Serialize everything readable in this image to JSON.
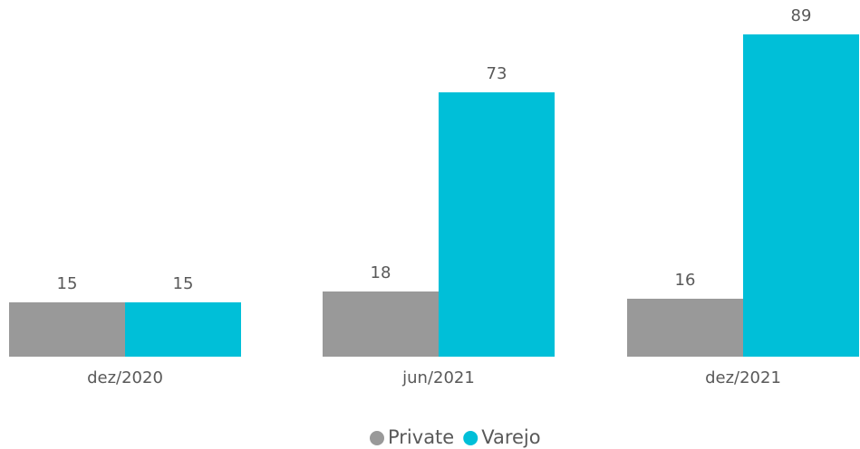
{
  "chart_data": {
    "type": "bar",
    "categories": [
      "dez/2020",
      "jun/2021",
      "dez/2021"
    ],
    "series": [
      {
        "name": "Private",
        "color": "#999999",
        "values": [
          15,
          18,
          16
        ]
      },
      {
        "name": "Varejo",
        "color": "#00bfd8",
        "values": [
          15,
          73,
          89
        ]
      }
    ]
  }
}
